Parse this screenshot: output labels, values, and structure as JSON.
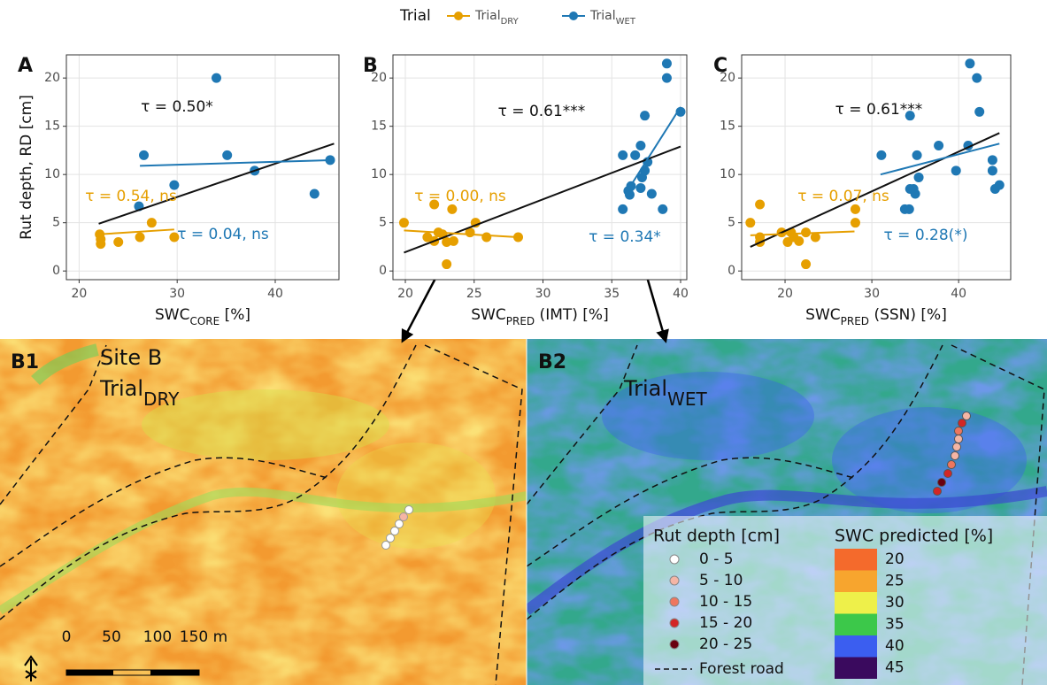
{
  "legend": {
    "title": "Trial",
    "items": [
      {
        "name": "Trial",
        "sub": "DRY",
        "color": "#e69f00"
      },
      {
        "name": "Trial",
        "sub": "WET",
        "color": "#1f78b4"
      }
    ]
  },
  "chart_data": [
    {
      "type": "scatter",
      "panel_label": "A",
      "y_label": "Rut depth, RD [cm]",
      "x_label": "SWC",
      "x_label_sub": "CORE",
      "x_label_unit": " [%]",
      "xlim": [
        18.7,
        46.5
      ],
      "ylim": [
        -0.9,
        22.4
      ],
      "xticks": [
        20,
        30,
        40
      ],
      "yticks": [
        0,
        5,
        10,
        15,
        20
      ],
      "grid": true,
      "series": [
        {
          "color": "#e69f00",
          "x": [
            22.2,
            22.2,
            22.1,
            24,
            26.2,
            27.4,
            29.7
          ],
          "values": [
            3.3,
            2.8,
            3.8,
            3,
            3.5,
            5,
            3.5
          ]
        },
        {
          "color": "#1f78b4",
          "x": [
            26.1,
            26.6,
            29.7,
            34,
            35.1,
            37.9,
            44,
            45.6
          ],
          "values": [
            6.7,
            12,
            8.9,
            20,
            12,
            10.4,
            8,
            11.5
          ]
        }
      ],
      "trend_lines": [
        {
          "color": "#111111",
          "x": [
            22,
            46
          ],
          "values": [
            4.9,
            13.2
          ]
        },
        {
          "color": "#1f78b4",
          "x": [
            26.2,
            46
          ],
          "values": [
            10.9,
            11.5
          ]
        },
        {
          "color": "#e69f00",
          "x": [
            22,
            29.7
          ],
          "values": [
            3.8,
            4.3
          ]
        }
      ],
      "annotations": [
        {
          "text": "τ = 0.50*",
          "color": "#111111"
        },
        {
          "text": "τ = 0.54, ns",
          "color": "#e69f00"
        },
        {
          "text": "τ = 0.04, ns",
          "color": "#1f78b4"
        }
      ]
    },
    {
      "type": "scatter",
      "panel_label": "B",
      "x_label": "SWC",
      "x_label_sub": "PRED",
      "x_label_unit": " (IMT) [%]",
      "xlim": [
        19.1,
        40.45
      ],
      "ylim": [
        -0.9,
        22.4
      ],
      "xticks": [
        20,
        25,
        30,
        35,
        40
      ],
      "yticks": [
        0,
        5,
        10,
        15,
        20
      ],
      "grid": true,
      "series": [
        {
          "color": "#e69f00",
          "x": [
            19.9,
            22.1,
            23,
            23.4,
            21.6,
            22.4,
            23,
            23.5,
            24.7,
            25.1,
            25.9,
            28.2,
            22.1,
            22.7
          ],
          "values": [
            5,
            6.9,
            0.7,
            6.4,
            3.5,
            4,
            3,
            3.1,
            4,
            5,
            3.5,
            3.5,
            3.1,
            3.8
          ]
        },
        {
          "color": "#1f78b4",
          "x": [
            35.8,
            35.8,
            36.2,
            36.4,
            36.3,
            36.7,
            37.1,
            37.2,
            37.4,
            37.4,
            37.6,
            37.9,
            38.7,
            39,
            39,
            40,
            37.1
          ],
          "values": [
            12,
            6.4,
            8.3,
            8.8,
            7.9,
            12,
            13,
            9.7,
            10.4,
            16.1,
            11.3,
            8,
            6.4,
            20,
            21.5,
            16.5,
            8.6
          ]
        }
      ],
      "trend_lines": [
        {
          "color": "#111111",
          "x": [
            19.9,
            40
          ],
          "values": [
            1.9,
            12.9
          ]
        },
        {
          "color": "#e69f00",
          "x": [
            19.9,
            28.2
          ],
          "values": [
            4.2,
            3.5
          ]
        },
        {
          "color": "#1f78b4",
          "x": [
            36,
            40
          ],
          "values": [
            8,
            17
          ]
        }
      ],
      "annotations": [
        {
          "text": "τ = 0.61***",
          "color": "#111111"
        },
        {
          "text": "τ = 0.00, ns",
          "color": "#e69f00"
        },
        {
          "text": "τ = 0.34*",
          "color": "#1f78b4"
        }
      ]
    },
    {
      "type": "scatter",
      "panel_label": "C",
      "x_label": "SWC",
      "x_label_sub": "PRED",
      "x_label_unit": " (SSN) [%]",
      "xlim": [
        15,
        46
      ],
      "ylim": [
        -0.9,
        22.4
      ],
      "xticks": [
        20,
        30,
        40
      ],
      "yticks": [
        0,
        5,
        10,
        15,
        20
      ],
      "grid": true,
      "series": [
        {
          "color": "#e69f00",
          "x": [
            16,
            17.1,
            17.1,
            17.1,
            19.6,
            20.3,
            21,
            21.6,
            22.4,
            22.4,
            23.5,
            28.1,
            28.1,
            20.7
          ],
          "values": [
            5,
            6.9,
            3.5,
            3,
            4,
            3,
            3.5,
            3.1,
            4,
            0.7,
            3.5,
            6.4,
            5,
            4
          ]
        },
        {
          "color": "#1f78b4",
          "x": [
            31.1,
            33.8,
            34.3,
            34.4,
            34.4,
            34.8,
            35,
            35.2,
            35.4,
            37.7,
            39.7,
            41.1,
            41.3,
            42.1,
            42.4,
            43.9,
            43.9,
            44.2,
            44.7
          ],
          "values": [
            12,
            6.4,
            6.4,
            8.5,
            16.1,
            8.5,
            8,
            12,
            9.7,
            13,
            10.4,
            13,
            21.5,
            20,
            16.5,
            11.5,
            10.4,
            8.5,
            8.9
          ]
        }
      ],
      "trend_lines": [
        {
          "color": "#111111",
          "x": [
            16,
            44.7
          ],
          "values": [
            2.5,
            14.3
          ]
        },
        {
          "color": "#e69f00",
          "x": [
            16,
            28
          ],
          "values": [
            3.7,
            4.1
          ]
        },
        {
          "color": "#1f78b4",
          "x": [
            31,
            44.7
          ],
          "values": [
            10,
            13.2
          ]
        }
      ],
      "annotations": [
        {
          "text": "τ = 0.61***",
          "color": "#111111"
        },
        {
          "text": "τ = 0.07, ns",
          "color": "#e69f00"
        },
        {
          "text": "τ = 0.28(*)",
          "color": "#1f78b4"
        }
      ]
    }
  ],
  "maps": [
    {
      "label": "B1",
      "site": "Site B",
      "trial": "Trial",
      "trial_sub": "DRY"
    },
    {
      "label": "B2",
      "trial": "Trial",
      "trial_sub": "WET"
    }
  ],
  "scale_labels": [
    0,
    50,
    100,
    {
      "value": 150,
      "label": "150 m"
    }
  ],
  "rut_legend": {
    "title": "Rut depth [cm]",
    "items": [
      {
        "label": "0 - 5",
        "color": "#ffffff"
      },
      {
        "label": "5 - 10",
        "color": "#f5b5a5"
      },
      {
        "label": "10 - 15",
        "color": "#ee765e"
      },
      {
        "label": "15 - 20",
        "color": "#d32626"
      },
      {
        "label": "20 - 25",
        "color": "#6a0010"
      }
    ]
  },
  "road_label": "Forest road",
  "swc_legend": {
    "title": "SWC predicted [%]",
    "items": [
      {
        "value": 20,
        "color": "#f46a2c"
      },
      {
        "value": 25,
        "color": "#f7a52e"
      },
      {
        "value": 30,
        "color": "#eef04a"
      },
      {
        "value": 35,
        "color": "#3cc84a"
      },
      {
        "value": 40,
        "color": "#3b5ef0"
      },
      {
        "value": 45,
        "color": "#3a0a5e"
      }
    ]
  }
}
